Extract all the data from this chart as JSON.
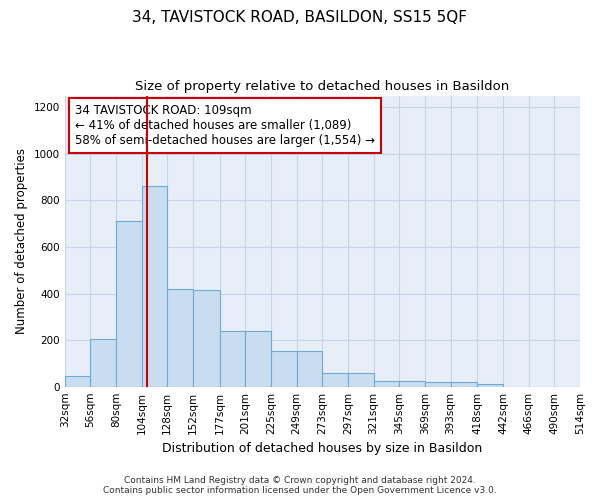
{
  "title": "34, TAVISTOCK ROAD, BASILDON, SS15 5QF",
  "subtitle": "Size of property relative to detached houses in Basildon",
  "xlabel": "Distribution of detached houses by size in Basildon",
  "ylabel": "Number of detached properties",
  "footer_line1": "Contains HM Land Registry data © Crown copyright and database right 2024.",
  "footer_line2": "Contains public sector information licensed under the Open Government Licence v3.0.",
  "annotation_title": "34 TAVISTOCK ROAD: 109sqm",
  "annotation_line2": "← 41% of detached houses are smaller (1,089)",
  "annotation_line3": "58% of semi-detached houses are larger (1,554) →",
  "bar_edges": [
    32,
    56,
    80,
    104,
    128,
    152,
    177,
    201,
    225,
    249,
    273,
    297,
    321,
    345,
    369,
    393,
    418,
    442,
    466,
    490,
    514
  ],
  "bar_heights": [
    45,
    205,
    710,
    860,
    420,
    415,
    240,
    240,
    155,
    155,
    60,
    60,
    25,
    25,
    20,
    18,
    12,
    0,
    0,
    0
  ],
  "bar_color": "#c9ddf0",
  "bar_edge_color": "#6aaad4",
  "vline_color": "#cc0000",
  "vline_x": 109,
  "ylim": [
    0,
    1250
  ],
  "yticks": [
    0,
    200,
    400,
    600,
    800,
    1000,
    1200
  ],
  "grid_color": "#c8d4e8",
  "bg_color": "#e8eef8",
  "annotation_box_edgecolor": "#cc0000",
  "title_fontsize": 11,
  "subtitle_fontsize": 9.5,
  "xlabel_fontsize": 9,
  "ylabel_fontsize": 8.5,
  "tick_fontsize": 7.5,
  "annotation_fontsize": 8.5,
  "footer_fontsize": 6.5
}
